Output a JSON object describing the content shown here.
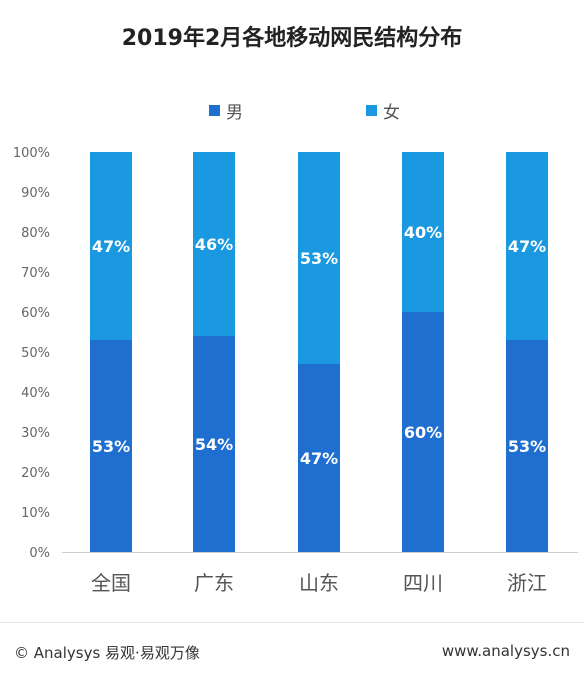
{
  "chart_data": {
    "type": "bar",
    "stacked": true,
    "title": "2019年2月各地移动网民结构分布",
    "categories": [
      "全国",
      "广东",
      "山东",
      "四川",
      "浙江"
    ],
    "series": [
      {
        "name": "男",
        "values": [
          53,
          54,
          47,
          60,
          53
        ],
        "color": "#1f6fd1"
      },
      {
        "name": "女",
        "values": [
          47,
          46,
          53,
          40,
          47
        ],
        "color": "#1a99e0"
      }
    ],
    "value_labels": {
      "男": [
        "53%",
        "54%",
        "47%",
        "60%",
        "53%"
      ],
      "女": [
        "47%",
        "46%",
        "53%",
        "40%",
        "47%"
      ]
    },
    "y_ticks": [
      "0%",
      "10%",
      "20%",
      "30%",
      "40%",
      "50%",
      "60%",
      "70%",
      "80%",
      "90%",
      "100%"
    ],
    "ylim": [
      0,
      100
    ],
    "legend_position": "top",
    "grid": false
  },
  "footer": {
    "source": "© Analysys 易观·易观万像",
    "url": "www.analysys.cn"
  }
}
